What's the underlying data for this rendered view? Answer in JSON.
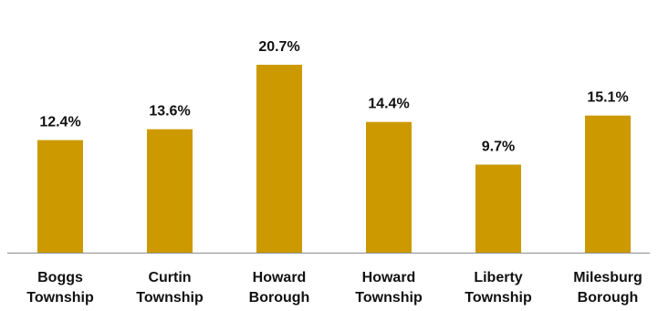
{
  "chart_data": {
    "type": "bar",
    "title": "",
    "xlabel": "",
    "ylabel": "",
    "categories": [
      [
        "Boggs",
        "Township"
      ],
      [
        "Curtin",
        "Township"
      ],
      [
        "Howard",
        "Borough"
      ],
      [
        "Howard",
        "Township"
      ],
      [
        "Liberty",
        "Township"
      ],
      [
        "Milesburg",
        "Borough"
      ]
    ],
    "values": [
      12.4,
      13.6,
      20.7,
      14.4,
      9.7,
      15.1
    ],
    "value_labels": [
      "12.4%",
      "13.6%",
      "20.7%",
      "14.4%",
      "9.7%",
      "15.1%"
    ],
    "ylim": [
      0,
      22
    ],
    "grid": false,
    "legend": "none",
    "colors": {
      "bar": "#CC9A00",
      "axis": "#8c8c8c",
      "text": "#111111"
    }
  }
}
